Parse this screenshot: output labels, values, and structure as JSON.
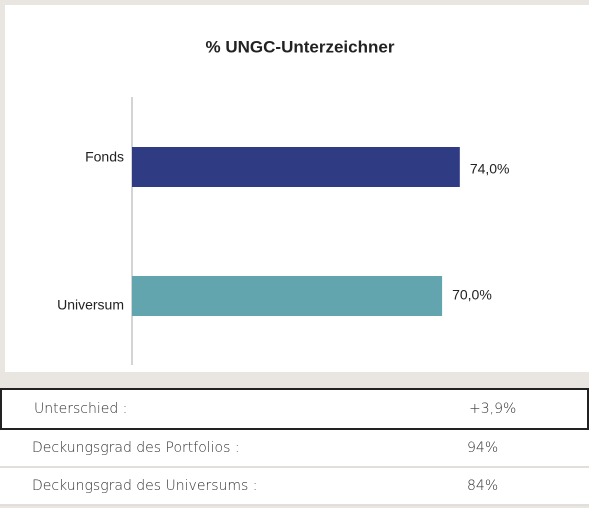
{
  "chart_data": {
    "type": "barh",
    "title": "% UNGC-Unterzeichner",
    "categories": [
      "Fonds",
      "Universum"
    ],
    "series": [
      {
        "values": [
          74,
          70
        ],
        "value_labels": [
          "74,0%",
          "70,0%"
        ],
        "colors": [
          "#2f3b82",
          "#62a5ae"
        ]
      }
    ],
    "xlim": [
      0,
      100
    ]
  },
  "table": {
    "rows": [
      [
        "Unterschied :",
        "+3,9%"
      ],
      [
        "Deckungsgrad des Portfolios :",
        "94%"
      ],
      [
        "Deckungsgrad des Universums :",
        "84%"
      ]
    ]
  }
}
